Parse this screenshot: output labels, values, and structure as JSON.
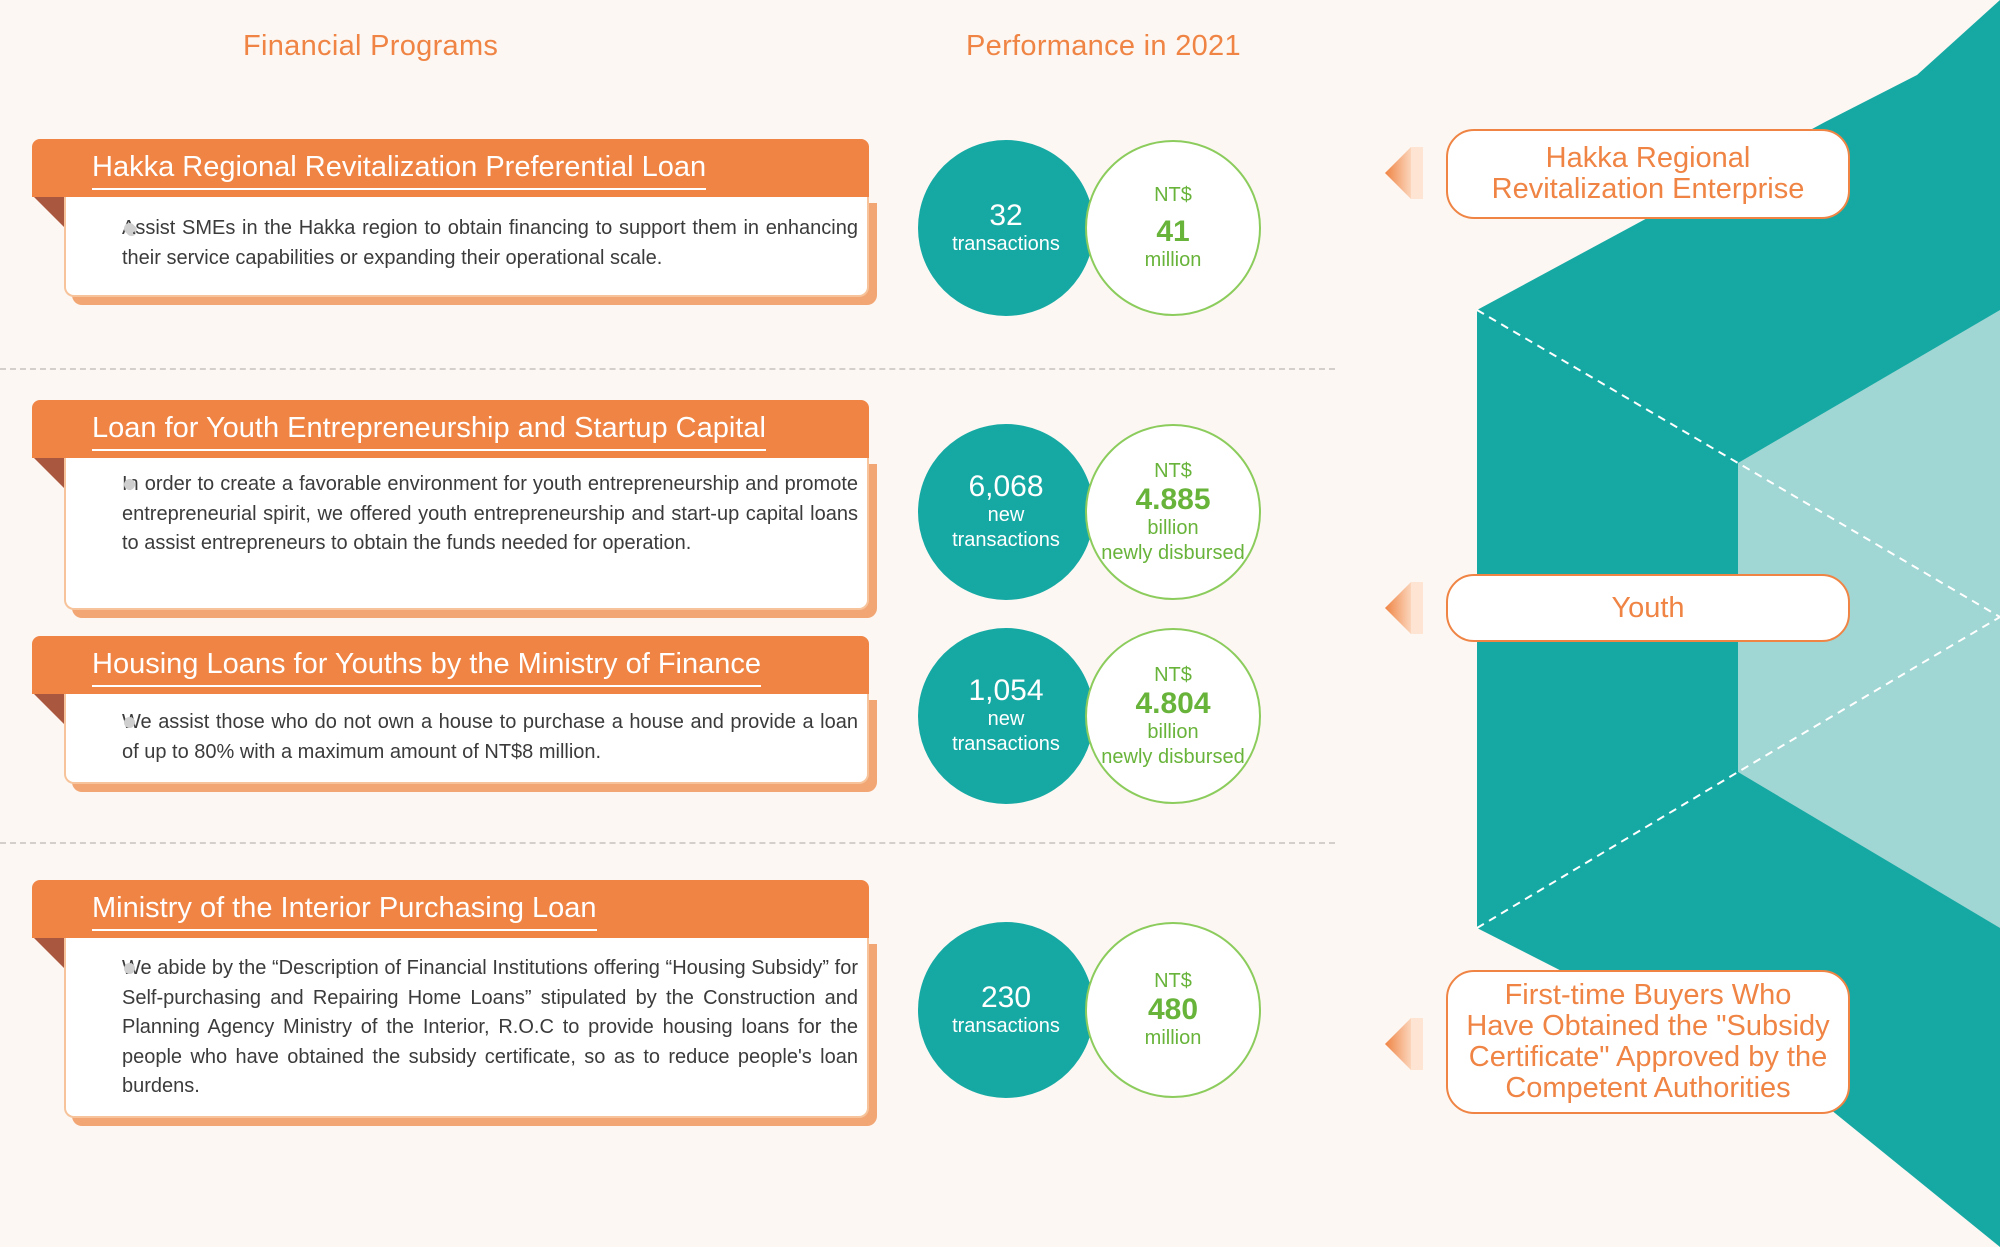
{
  "headings": {
    "programs": "Financial Programs",
    "performance": "Performance in 2021"
  },
  "programs": [
    {
      "title": "Hakka Regional Revitalization Preferential Loan",
      "description": "Assist SMEs in the Hakka region to obtain financing to support them in enhancing their service capabilities or expanding their operational scale."
    },
    {
      "title": "Loan for Youth Entrepreneurship and Startup Capital",
      "description": "In order to create a favorable environment for youth entrepreneurship and promote entrepreneurial spirit, we offered youth entrepreneurship and start-up capital loans to assist entrepreneurs to obtain the funds needed for operation."
    },
    {
      "title": "Housing Loans for Youths by the Ministry of Finance",
      "description": "We assist those who do not own a house to purchase a house and provide a loan of up to 80% with a maximum amount of NT$8 million."
    },
    {
      "title": "Ministry of the Interior Purchasing Loan",
      "description": "We abide by the “Description of Financial Institutions offering “Housing Subsidy” for Self-purchasing and Repairing Home Loans” stipulated by the Construction and Planning Agency Ministry of the Interior, R.O.C to provide housing loans for the people who have obtained the subsidy certificate, so as to reduce people's loan burdens."
    }
  ],
  "performance": [
    {
      "count": "32",
      "count_line1": "transactions",
      "count_line2": "",
      "currency": "NT$",
      "amount": "41",
      "unit": "million",
      "note": ""
    },
    {
      "count": "6,068",
      "count_line1": "new",
      "count_line2": "transactions",
      "currency": "NT$",
      "amount": "4.885",
      "unit": "billion",
      "note": "newly disbursed"
    },
    {
      "count": "1,054",
      "count_line1": "new",
      "count_line2": "transactions",
      "currency": "NT$",
      "amount": "4.804",
      "unit": "billion",
      "note": "newly disbursed"
    },
    {
      "count": "230",
      "count_line1": "transactions",
      "count_line2": "",
      "currency": "NT$",
      "amount": "480",
      "unit": "million",
      "note": ""
    }
  ],
  "targets": [
    {
      "line1": "Hakka Regional",
      "line2": "Revitalization Enterprise",
      "line3": "",
      "line4": ""
    },
    {
      "line1": "Youth",
      "line2": "",
      "line3": "",
      "line4": ""
    },
    {
      "line1": "First-time Buyers Who",
      "line2": "Have Obtained the \"Subsidy",
      "line3": "Certificate\" Approved by the",
      "line4": "Competent Authorities"
    }
  ],
  "colors": {
    "accent": "#ef8444",
    "teal": "#16a9a4",
    "light_teal": "#a0d6d3",
    "green": "#68b33a",
    "background": "#fcf7f2"
  }
}
